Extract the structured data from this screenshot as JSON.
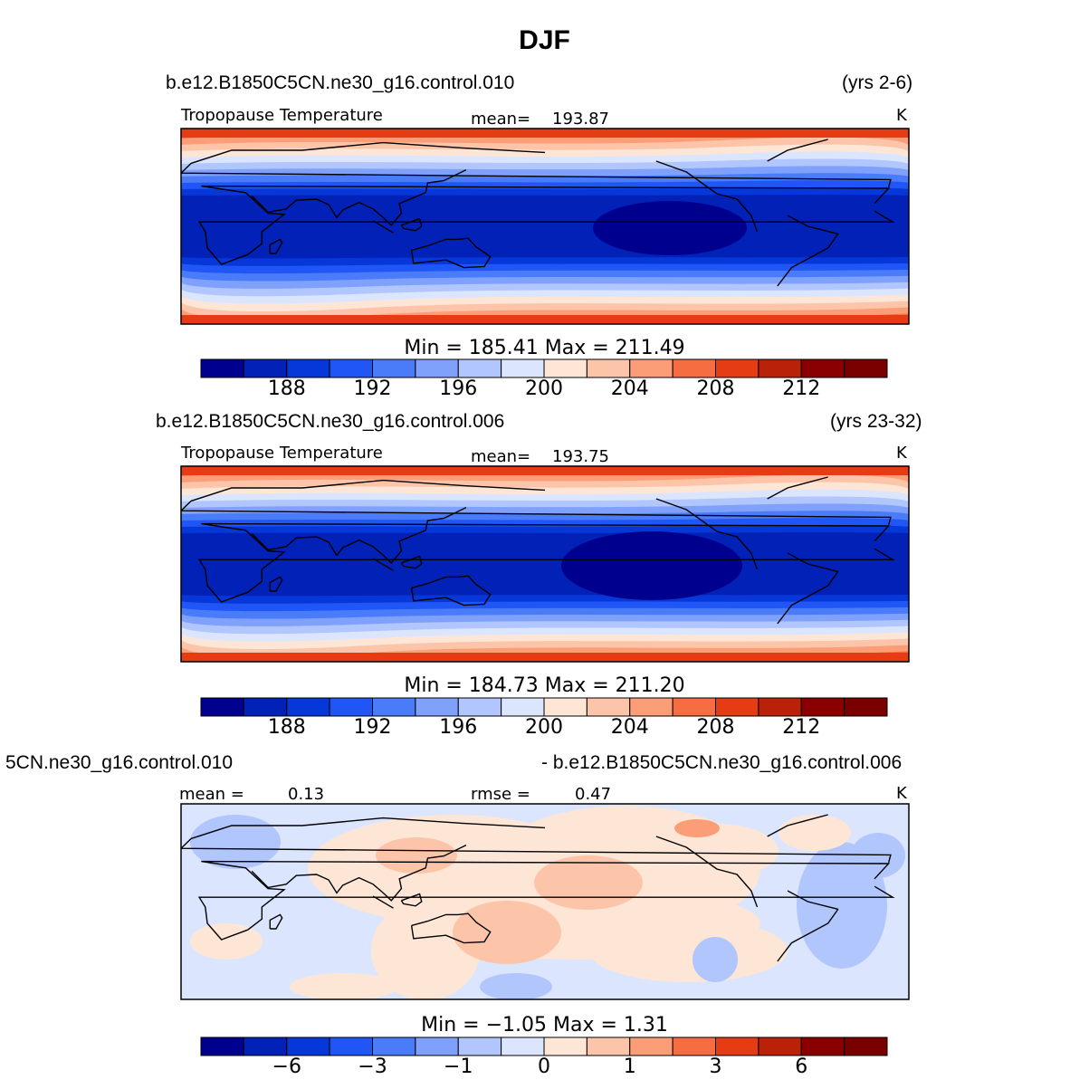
{
  "figure": {
    "title": "DJF"
  },
  "chart_data": [
    {
      "type": "heatmap",
      "case_name": "b.e12.B1850C5CN.ne30_g16.control.010",
      "years": "(yrs 2-6)",
      "variable": "Tropopause Temperature",
      "stat_label": "mean=",
      "stat_value": "193.87",
      "units": "K",
      "min_max_text": "Min  =  185.41  Max  =  211.49",
      "min": 185.41,
      "max": 211.49,
      "mean": 193.87,
      "colorbar_ticks": [
        "188",
        "192",
        "196",
        "200",
        "204",
        "208",
        "212"
      ],
      "colorbar_levels": [
        186,
        188,
        190,
        192,
        194,
        196,
        198,
        200,
        202,
        204,
        206,
        208,
        210,
        212
      ]
    },
    {
      "type": "heatmap",
      "case_name": "b.e12.B1850C5CN.ne30_g16.control.006",
      "years": "(yrs 23-32)",
      "variable": "Tropopause Temperature",
      "stat_label": "mean=",
      "stat_value": "193.75",
      "units": "K",
      "min_max_text": "Min  =  184.73  Max  =  211.20",
      "min": 184.73,
      "max": 211.2,
      "mean": 193.75,
      "colorbar_ticks": [
        "188",
        "192",
        "196",
        "200",
        "204",
        "208",
        "212"
      ],
      "colorbar_levels": [
        186,
        188,
        190,
        192,
        194,
        196,
        198,
        200,
        202,
        204,
        206,
        208,
        210,
        212
      ]
    },
    {
      "type": "heatmap",
      "case_name": "5CN.ne30_g16.control.010",
      "years": "- b.e12.B1850C5CN.ne30_g16.control.006",
      "variable": "",
      "stat_label": "mean =",
      "stat_value": "0.13",
      "rmse_label": "rmse =",
      "rmse_value": "0.47",
      "units": "K",
      "min_max_text": "Min  =   −1.05  Max  =     1.31",
      "min": -1.05,
      "max": 1.31,
      "mean": 0.13,
      "rmse": 0.47,
      "colorbar_ticks": [
        "−6",
        "−3",
        "−1",
        "0",
        "1",
        "3",
        "6"
      ],
      "colorbar_levels": [
        -8,
        -6,
        -4,
        -3,
        -2,
        -1,
        -0.5,
        0,
        0.5,
        1,
        2,
        3,
        4,
        6,
        8
      ]
    }
  ],
  "palette": [
    "#00008f",
    "#0221b6",
    "#0637d8",
    "#1f56f5",
    "#4a7bf9",
    "#7fa1fb",
    "#b0c6fd",
    "#dbe6fe",
    "#fde6d6",
    "#fcc5aa",
    "#fb9e78",
    "#f66d42",
    "#e53c14",
    "#b92209",
    "#8a0000"
  ]
}
